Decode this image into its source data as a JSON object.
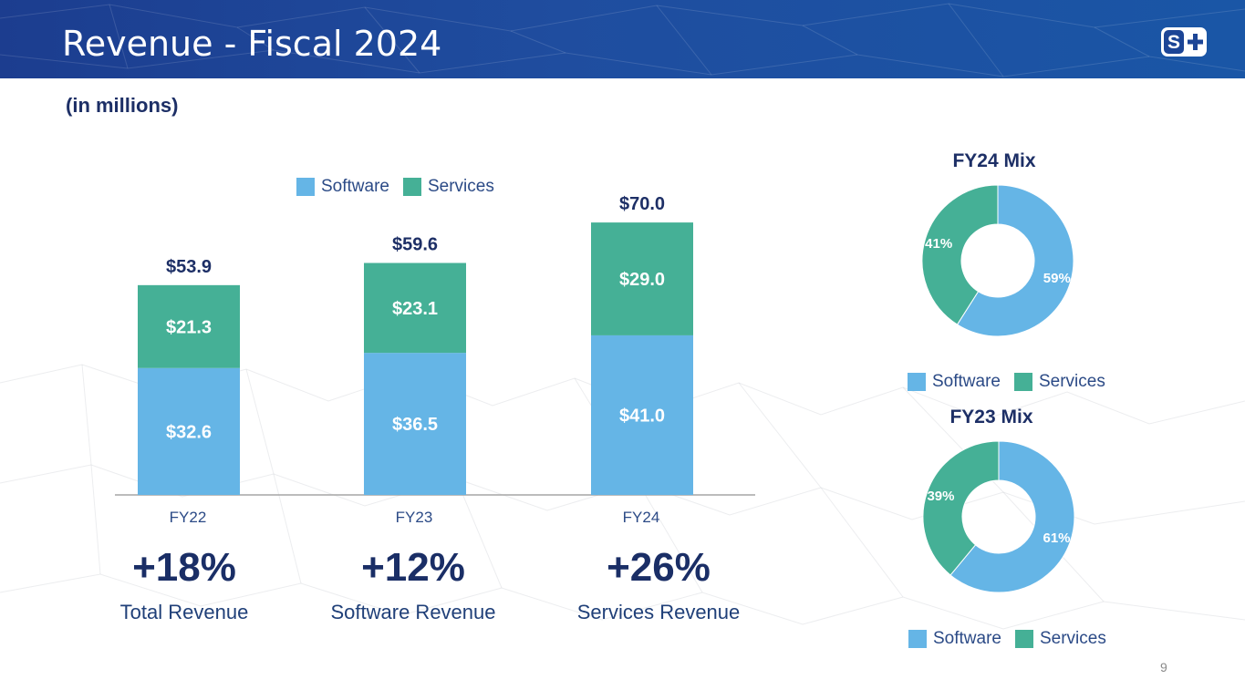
{
  "header": {
    "title": "Revenue - Fiscal 2024",
    "logo_text": "S+"
  },
  "subtitle": "(in millions)",
  "colors": {
    "software": "#65b5e6",
    "services": "#45b096",
    "header": "#1c4596",
    "text_dark": "#1d2f66"
  },
  "bar_legend": {
    "software": "Software",
    "services": "Services"
  },
  "chart_data": [
    {
      "type": "bar",
      "stacked": true,
      "categories": [
        "FY22",
        "FY23",
        "FY24"
      ],
      "series": [
        {
          "name": "Software",
          "values": [
            32.6,
            36.5,
            41.0
          ],
          "labels": [
            "$32.6",
            "$36.5",
            "$41.0"
          ]
        },
        {
          "name": "Services",
          "values": [
            21.3,
            23.1,
            29.0
          ],
          "labels": [
            "$21.3",
            "$23.1",
            "$29.0"
          ]
        }
      ],
      "totals": [
        53.9,
        59.6,
        70.0
      ],
      "total_labels": [
        "$53.9",
        "$59.6",
        "$70.0"
      ],
      "title": "",
      "xlabel": "",
      "ylabel": "",
      "legend": "top-center"
    },
    {
      "type": "pie",
      "donut": true,
      "title": "FY24 Mix",
      "categories": [
        "Software",
        "Services"
      ],
      "values": [
        59,
        41
      ],
      "labels": [
        "59%",
        "41%"
      ],
      "legend": "bottom"
    },
    {
      "type": "pie",
      "donut": true,
      "title": "FY23 Mix",
      "categories": [
        "Software",
        "Services"
      ],
      "values": [
        61,
        39
      ],
      "labels": [
        "61%",
        "39%"
      ],
      "legend": "bottom"
    }
  ],
  "growth": [
    {
      "value": "+18%",
      "caption": "Total Revenue"
    },
    {
      "value": "+12%",
      "caption": "Software Revenue"
    },
    {
      "value": "+26%",
      "caption": "Services Revenue"
    }
  ],
  "mix_legend": {
    "software": "Software",
    "services": "Services"
  },
  "page_number": "9"
}
